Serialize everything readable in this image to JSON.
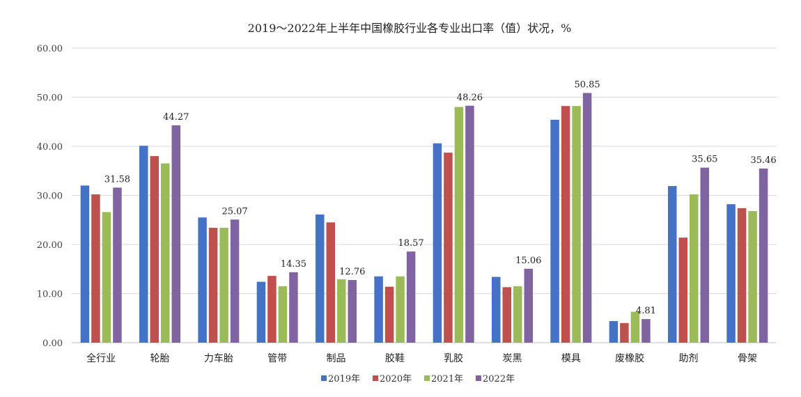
{
  "chart_data": {
    "type": "bar",
    "title": "2019～2022年上半年中国橡胶行业各专业出口率（值）状况，%",
    "categories": [
      "全行业",
      "轮胎",
      "力车胎",
      "管带",
      "制品",
      "胶鞋",
      "乳胶",
      "炭黑",
      "模具",
      "废橡胶",
      "助剂",
      "骨架"
    ],
    "series": [
      {
        "name": "2019年",
        "color": "#4472c4",
        "values": [
          32.0,
          40.1,
          25.5,
          12.4,
          26.1,
          13.5,
          40.6,
          13.4,
          45.4,
          4.4,
          31.9,
          28.2
        ]
      },
      {
        "name": "2020年",
        "color": "#c0504d",
        "values": [
          30.2,
          38.0,
          23.4,
          13.6,
          24.5,
          11.4,
          38.7,
          11.3,
          48.2,
          4.0,
          21.4,
          27.4
        ]
      },
      {
        "name": "2021年",
        "color": "#9bbb59",
        "values": [
          26.6,
          36.5,
          23.4,
          11.5,
          12.9,
          13.5,
          48.0,
          11.5,
          48.2,
          6.3,
          30.2,
          26.8
        ]
      },
      {
        "name": "2022年",
        "color": "#8064a2",
        "values": [
          31.58,
          44.27,
          25.07,
          14.35,
          12.76,
          18.57,
          48.26,
          15.06,
          50.85,
          4.81,
          35.65,
          35.46
        ]
      }
    ],
    "data_labels": [
      "31.58",
      "44.27",
      "25.07",
      "14.35",
      "12.76",
      "18.57",
      "48.26",
      "15.06",
      "50.85",
      "4.81",
      "35.65",
      "35.46"
    ],
    "labeled_series": "2022年",
    "ylim": [
      0,
      60
    ],
    "yticks": [
      "0.00",
      "10.00",
      "20.00",
      "30.00",
      "40.00",
      "50.00",
      "60.00"
    ],
    "grid": true,
    "legend_position": "bottom"
  }
}
